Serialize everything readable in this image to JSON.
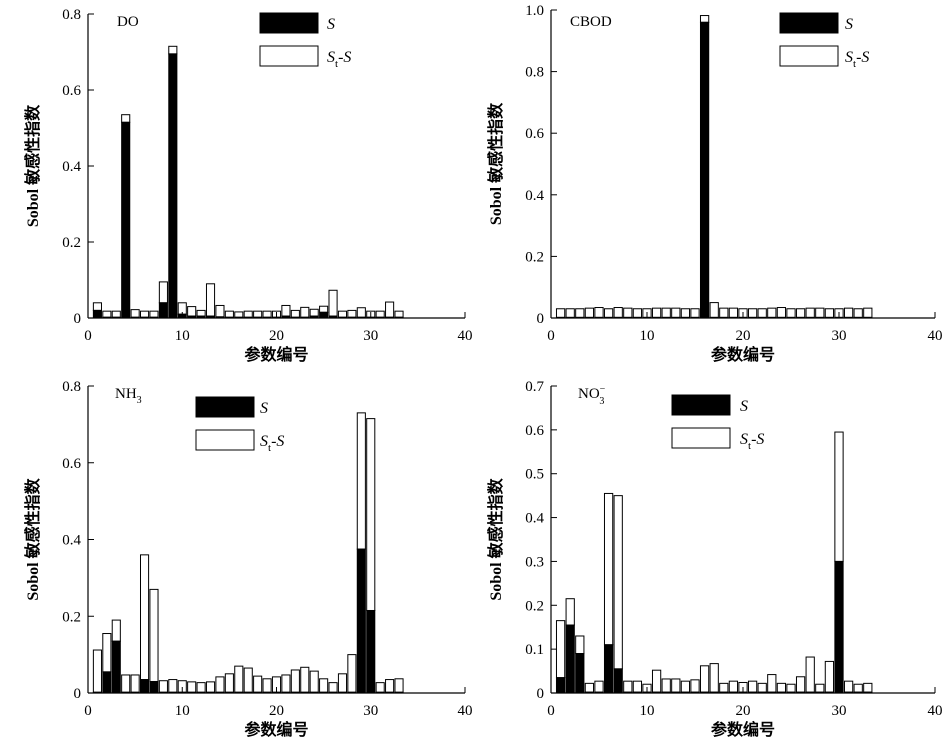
{
  "figure": {
    "legend_s": "S",
    "legend_st_main": "S",
    "legend_st_sub": "t",
    "legend_st_suffix": "-S"
  },
  "chart_data": [
    {
      "type": "bar",
      "stacked": true,
      "panel_label": "DO",
      "panel_label_main": "DO",
      "panel_label_sub": "",
      "panel_label_sup": "",
      "xlabel": "参数编号",
      "ylabel": "Sobol 敏感性指数",
      "xlim": [
        0,
        40
      ],
      "ylim": [
        0,
        0.8
      ],
      "xticks": [
        0,
        10,
        20,
        30,
        40
      ],
      "xtick_labels": [
        "0",
        "10",
        "20",
        "30",
        "40"
      ],
      "yticks": [
        0,
        0.2,
        0.4,
        0.6,
        0.8
      ],
      "ytick_labels": [
        "0",
        "0.2",
        "0.4",
        "0.6",
        "0.8"
      ],
      "legend_position": "top-right",
      "x": [
        1,
        2,
        3,
        4,
        5,
        6,
        7,
        8,
        9,
        10,
        11,
        12,
        13,
        14,
        15,
        16,
        17,
        18,
        19,
        20,
        21,
        22,
        23,
        24,
        25,
        26,
        27,
        28,
        29,
        30,
        31,
        32,
        33
      ],
      "series": [
        {
          "name": "S",
          "values": [
            0.02,
            0.002,
            0.002,
            0.515,
            0.002,
            0.002,
            0.002,
            0.04,
            0.695,
            0.01,
            0.005,
            0.005,
            0.005,
            0.003,
            0.002,
            0.002,
            0.002,
            0.002,
            0.002,
            0.002,
            0.005,
            0.002,
            0.002,
            0.005,
            0.015,
            0.005,
            0.002,
            0.002,
            0.002,
            0.002,
            0.002,
            0.002,
            0.002
          ]
        },
        {
          "name": "St-S",
          "values": [
            0.02,
            0.016,
            0.016,
            0.02,
            0.02,
            0.016,
            0.016,
            0.055,
            0.02,
            0.03,
            0.025,
            0.015,
            0.085,
            0.03,
            0.016,
            0.014,
            0.016,
            0.016,
            0.016,
            0.016,
            0.028,
            0.018,
            0.026,
            0.018,
            0.016,
            0.068,
            0.016,
            0.018,
            0.025,
            0.016,
            0.016,
            0.04,
            0.016
          ]
        }
      ]
    },
    {
      "type": "bar",
      "stacked": true,
      "panel_label": "CBOD",
      "panel_label_main": "CBOD",
      "panel_label_sub": "",
      "panel_label_sup": "",
      "xlabel": "参数编号",
      "ylabel": "Sobol 敏感性指数",
      "xlim": [
        0,
        40
      ],
      "ylim": [
        0,
        1.0
      ],
      "xticks": [
        0,
        10,
        20,
        30,
        40
      ],
      "xtick_labels": [
        "0",
        "10",
        "20",
        "30",
        "40"
      ],
      "yticks": [
        0,
        0.2,
        0.4,
        0.6,
        0.8,
        1.0
      ],
      "ytick_labels": [
        "0",
        "0.2",
        "0.4",
        "0.6",
        "0.8",
        "1.0"
      ],
      "legend_position": "top-right",
      "x": [
        1,
        2,
        3,
        4,
        5,
        6,
        7,
        8,
        9,
        10,
        11,
        12,
        13,
        14,
        15,
        16,
        17,
        18,
        19,
        20,
        21,
        22,
        23,
        24,
        25,
        26,
        27,
        28,
        29,
        30,
        31,
        32,
        33
      ],
      "series": [
        {
          "name": "S",
          "values": [
            0.002,
            0.002,
            0.002,
            0.002,
            0.002,
            0.002,
            0.002,
            0.002,
            0.002,
            0.002,
            0.002,
            0.002,
            0.002,
            0.002,
            0.002,
            0.96,
            0.002,
            0.002,
            0.002,
            0.002,
            0.002,
            0.002,
            0.002,
            0.002,
            0.002,
            0.002,
            0.002,
            0.002,
            0.002,
            0.002,
            0.002,
            0.002,
            0.002
          ]
        },
        {
          "name": "St-S",
          "values": [
            0.028,
            0.028,
            0.028,
            0.03,
            0.032,
            0.028,
            0.032,
            0.03,
            0.028,
            0.028,
            0.03,
            0.03,
            0.03,
            0.028,
            0.028,
            0.022,
            0.048,
            0.03,
            0.03,
            0.028,
            0.028,
            0.028,
            0.03,
            0.032,
            0.028,
            0.028,
            0.03,
            0.03,
            0.028,
            0.028,
            0.03,
            0.028,
            0.03
          ]
        }
      ]
    },
    {
      "type": "bar",
      "stacked": true,
      "panel_label": "NH3",
      "panel_label_main": "NH",
      "panel_label_sub": "3",
      "panel_label_sup": "",
      "xlabel": "参数编号",
      "ylabel": "Sobol 敏感性指数",
      "xlim": [
        0,
        40
      ],
      "ylim": [
        0,
        0.8
      ],
      "xticks": [
        0,
        10,
        20,
        30,
        40
      ],
      "xtick_labels": [
        "0",
        "10",
        "20",
        "30",
        "40"
      ],
      "yticks": [
        0,
        0.2,
        0.4,
        0.6,
        0.8
      ],
      "ytick_labels": [
        "0",
        "0.2",
        "0.4",
        "0.6",
        "0.8"
      ],
      "legend_position": "top-right",
      "x": [
        1,
        2,
        3,
        4,
        5,
        6,
        7,
        8,
        9,
        10,
        11,
        12,
        13,
        14,
        15,
        16,
        17,
        18,
        19,
        20,
        21,
        22,
        23,
        24,
        25,
        26,
        27,
        28,
        29,
        30,
        31,
        32,
        33
      ],
      "series": [
        {
          "name": "S",
          "values": [
            0.002,
            0.055,
            0.135,
            0.002,
            0.002,
            0.035,
            0.03,
            0.002,
            0.002,
            0.002,
            0.002,
            0.002,
            0.002,
            0.002,
            0.002,
            0.002,
            0.002,
            0.002,
            0.002,
            0.002,
            0.002,
            0.002,
            0.002,
            0.002,
            0.002,
            0.002,
            0.002,
            0.002,
            0.375,
            0.215,
            0.002,
            0.002,
            0.002
          ]
        },
        {
          "name": "St-S",
          "values": [
            0.11,
            0.1,
            0.055,
            0.045,
            0.045,
            0.325,
            0.24,
            0.03,
            0.033,
            0.03,
            0.027,
            0.025,
            0.027,
            0.04,
            0.048,
            0.068,
            0.063,
            0.042,
            0.035,
            0.04,
            0.045,
            0.058,
            0.065,
            0.055,
            0.035,
            0.025,
            0.048,
            0.098,
            0.355,
            0.5,
            0.025,
            0.033,
            0.035
          ]
        }
      ]
    },
    {
      "type": "bar",
      "stacked": true,
      "panel_label": "NO3-",
      "panel_label_main": "NO",
      "panel_label_sub": "3",
      "panel_label_sup": "−",
      "xlabel": "参数编号",
      "ylabel": "Sobol 敏感性指数",
      "xlim": [
        0,
        40
      ],
      "ylim": [
        0,
        0.7
      ],
      "xticks": [
        0,
        10,
        20,
        30,
        40
      ],
      "xtick_labels": [
        "0",
        "10",
        "20",
        "30",
        "40"
      ],
      "yticks": [
        0,
        0.1,
        0.2,
        0.3,
        0.4,
        0.5,
        0.6,
        0.7
      ],
      "ytick_labels": [
        "0",
        "0.1",
        "0.2",
        "0.3",
        "0.4",
        "0.5",
        "0.6",
        "0.7"
      ],
      "legend_position": "top-right",
      "x": [
        1,
        2,
        3,
        4,
        5,
        6,
        7,
        8,
        9,
        10,
        11,
        12,
        13,
        14,
        15,
        16,
        17,
        18,
        19,
        20,
        21,
        22,
        23,
        24,
        25,
        26,
        27,
        28,
        29,
        30,
        31,
        32,
        33
      ],
      "series": [
        {
          "name": "S",
          "values": [
            0.035,
            0.155,
            0.09,
            0.002,
            0.002,
            0.11,
            0.055,
            0.002,
            0.002,
            0.002,
            0.002,
            0.002,
            0.002,
            0.002,
            0.002,
            0.002,
            0.002,
            0.002,
            0.002,
            0.002,
            0.002,
            0.002,
            0.002,
            0.002,
            0.002,
            0.002,
            0.002,
            0.002,
            0.002,
            0.3,
            0.002,
            0.002,
            0.002
          ]
        },
        {
          "name": "St-S",
          "values": [
            0.13,
            0.06,
            0.04,
            0.02,
            0.025,
            0.345,
            0.395,
            0.025,
            0.025,
            0.018,
            0.05,
            0.03,
            0.03,
            0.025,
            0.028,
            0.06,
            0.065,
            0.02,
            0.025,
            0.022,
            0.025,
            0.02,
            0.04,
            0.02,
            0.018,
            0.035,
            0.08,
            0.018,
            0.07,
            0.295,
            0.025,
            0.018,
            0.02
          ]
        }
      ]
    }
  ]
}
